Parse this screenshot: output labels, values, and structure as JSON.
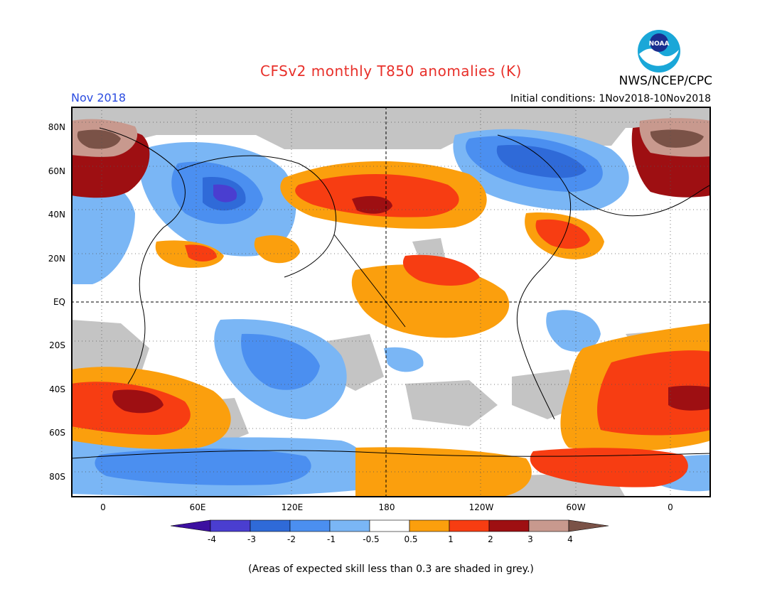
{
  "header": {
    "title": "CFSv2 monthly T850 anomalies (K)",
    "title_color": "#e8302a",
    "month": "Nov 2018",
    "month_color": "#2a4be0",
    "initial_conditions": "Initial conditions: 1Nov2018-10Nov2018",
    "org": "NWS/NCEP/CPC"
  },
  "logo": {
    "text": "NOAA",
    "icon": "noaa-logo"
  },
  "axes": {
    "lat_labels": [
      "80N",
      "60N",
      "40N",
      "20N",
      "EQ",
      "20S",
      "40S",
      "60S",
      "80S"
    ],
    "lon_labels": [
      "0",
      "60E",
      "120E",
      "180",
      "120W",
      "60W",
      "0"
    ]
  },
  "colorbar": {
    "labels": [
      "-4",
      "-3",
      "-2",
      "-1",
      "-0.5",
      "0.5",
      "1",
      "2",
      "3",
      "4"
    ],
    "colors": [
      "#3c0fa0",
      "#4a3ed0",
      "#2f6ad8",
      "#4b8ff0",
      "#7ab6f5",
      "#ffffff",
      "#fb9f0d",
      "#f73d12",
      "#9e0f12",
      "#c8998e",
      "#7a5247"
    ]
  },
  "map_colors": {
    "grey": "#c4c4c4",
    "neg_light": "#7ab6f5",
    "neg_mid": "#4b8ff0",
    "neg_strong": "#2f6ad8",
    "neg_deep": "#4a3ed0",
    "pos_light": "#fb9f0d",
    "pos_mid": "#f73d12",
    "pos_strong": "#9e0f12",
    "pos_tan": "#c8998e",
    "pos_brown": "#7a5247"
  },
  "footnote": "(Areas of expected skill less than 0.3 are shaded in grey.)"
}
